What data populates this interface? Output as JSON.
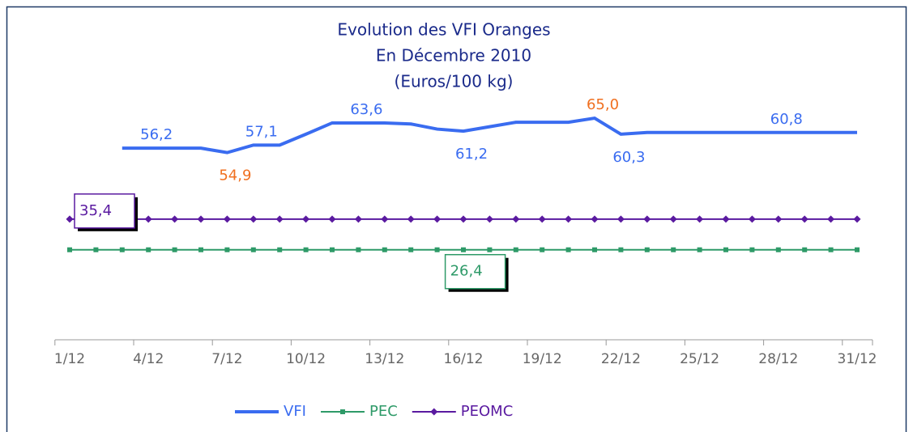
{
  "chart_data": {
    "type": "line",
    "title": [
      "Evolution des VFI Oranges",
      "En Décembre 2010",
      "(Euros/100 kg)"
    ],
    "categories": [
      "1/12",
      null,
      null,
      "4/12",
      null,
      null,
      "7/12",
      null,
      null,
      "10/12",
      null,
      null,
      "13/12",
      null,
      null,
      "16/12",
      null,
      null,
      "19/12",
      null,
      null,
      "22/12",
      null,
      null,
      "25/12",
      null,
      null,
      "28/12",
      null,
      null,
      "31/12"
    ],
    "series": [
      {
        "name": "VFI",
        "color": "#3a6cf0",
        "marker": "none",
        "values": [
          null,
          null,
          56.2,
          56.2,
          56.2,
          56.2,
          54.9,
          57.1,
          57.1,
          60.3,
          63.6,
          63.6,
          63.6,
          63.3,
          61.8,
          61.2,
          62.5,
          63.8,
          63.8,
          63.8,
          65.0,
          60.3,
          60.8,
          60.8,
          60.8,
          60.8,
          60.8,
          60.8,
          60.8,
          60.8,
          60.8
        ],
        "value_labels": [
          null,
          null,
          null,
          "56,2",
          null,
          null,
          "54,9",
          "57,1",
          null,
          null,
          null,
          "63,6",
          null,
          null,
          null,
          "61,2",
          null,
          null,
          null,
          null,
          "65,0",
          "60,3",
          null,
          null,
          null,
          null,
          null,
          "60,8",
          null,
          null,
          null
        ]
      },
      {
        "name": "PEC",
        "color": "#2e9a68",
        "marker": "square",
        "values": [
          26.4,
          26.4,
          26.4,
          26.4,
          26.4,
          26.4,
          26.4,
          26.4,
          26.4,
          26.4,
          26.4,
          26.4,
          26.4,
          26.4,
          26.4,
          26.4,
          26.4,
          26.4,
          26.4,
          26.4,
          26.4,
          26.4,
          26.4,
          26.4,
          26.4,
          26.4,
          26.4,
          26.4,
          26.4,
          26.4,
          26.4
        ],
        "value_labels": [
          null,
          null,
          null,
          null,
          null,
          null,
          null,
          null,
          null,
          null,
          null,
          null,
          null,
          null,
          "26,4",
          null,
          null,
          null,
          null,
          null,
          null,
          null,
          null,
          null,
          null,
          null,
          null,
          null,
          null,
          null,
          null
        ]
      },
      {
        "name": "PEOMC",
        "color": "#5a1aa0",
        "marker": "diamond",
        "values": [
          35.4,
          35.4,
          35.4,
          35.4,
          35.4,
          35.4,
          35.4,
          35.4,
          35.4,
          35.4,
          35.4,
          35.4,
          35.4,
          35.4,
          35.4,
          35.4,
          35.4,
          35.4,
          35.4,
          35.4,
          35.4,
          35.4,
          35.4,
          35.4,
          35.4,
          35.4,
          35.4,
          35.4,
          35.4,
          35.4,
          35.4
        ],
        "value_labels": [
          "35,4",
          null,
          null,
          null,
          null,
          null,
          null,
          null,
          null,
          null,
          null,
          null,
          null,
          null,
          null,
          null,
          null,
          null,
          null,
          null,
          null,
          null,
          null,
          null,
          null,
          null,
          null,
          null,
          null,
          null,
          null
        ]
      }
    ],
    "extreme_label_color": "#f07020",
    "ylim": [
      0,
      70
    ],
    "legend": "bottom"
  }
}
